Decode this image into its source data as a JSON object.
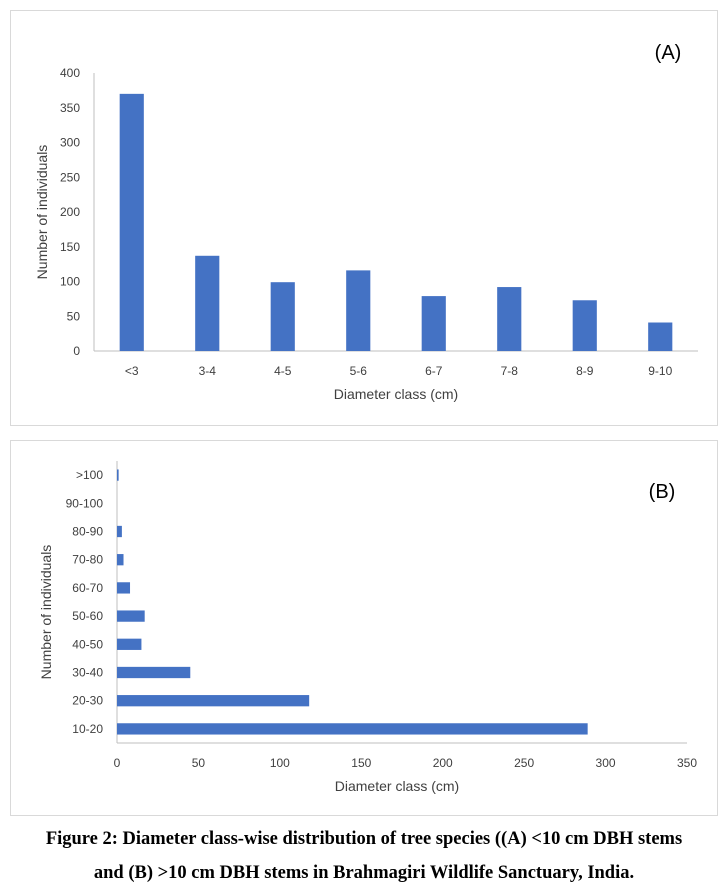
{
  "chart_data": [
    {
      "type": "bar",
      "orientation": "vertical",
      "panel_label": "(A)",
      "categories": [
        "<3",
        "3-4",
        "4-5",
        "5-6",
        "6-7",
        "7-8",
        "8-9",
        "9-10"
      ],
      "values": [
        370,
        137,
        99,
        116,
        79,
        92,
        73,
        41
      ],
      "xlabel": "Diameter class (cm)",
      "ylabel": "Number of individuals",
      "ylim": [
        0,
        400
      ],
      "yticks": [
        0,
        50,
        100,
        150,
        200,
        250,
        300,
        350,
        400
      ],
      "bar_color": "#4472C4",
      "grid": false,
      "legend": "none"
    },
    {
      "type": "bar",
      "orientation": "horizontal",
      "panel_label": "(B)",
      "categories": [
        "10-20",
        "20-30",
        "30-40",
        "40-50",
        "50-60",
        "60-70",
        "70-80",
        "80-90",
        "90-100",
        ">100"
      ],
      "values": [
        289,
        118,
        45,
        15,
        17,
        8,
        4,
        3,
        0,
        1
      ],
      "xlabel": "Diameter class (cm)",
      "ylabel": "Number of individuals",
      "xlim": [
        0,
        350
      ],
      "xticks": [
        0,
        50,
        100,
        150,
        200,
        250,
        300,
        350
      ],
      "bar_color": "#4472C4",
      "grid": false,
      "legend": "none"
    }
  ],
  "caption": {
    "line1": "Figure 2: Diameter class-wise distribution of tree species ((A) <10 cm DBH stems",
    "line2": "and (B) >10 cm DBH stems in Brahmagiri Wildlife Sanctuary, India."
  }
}
